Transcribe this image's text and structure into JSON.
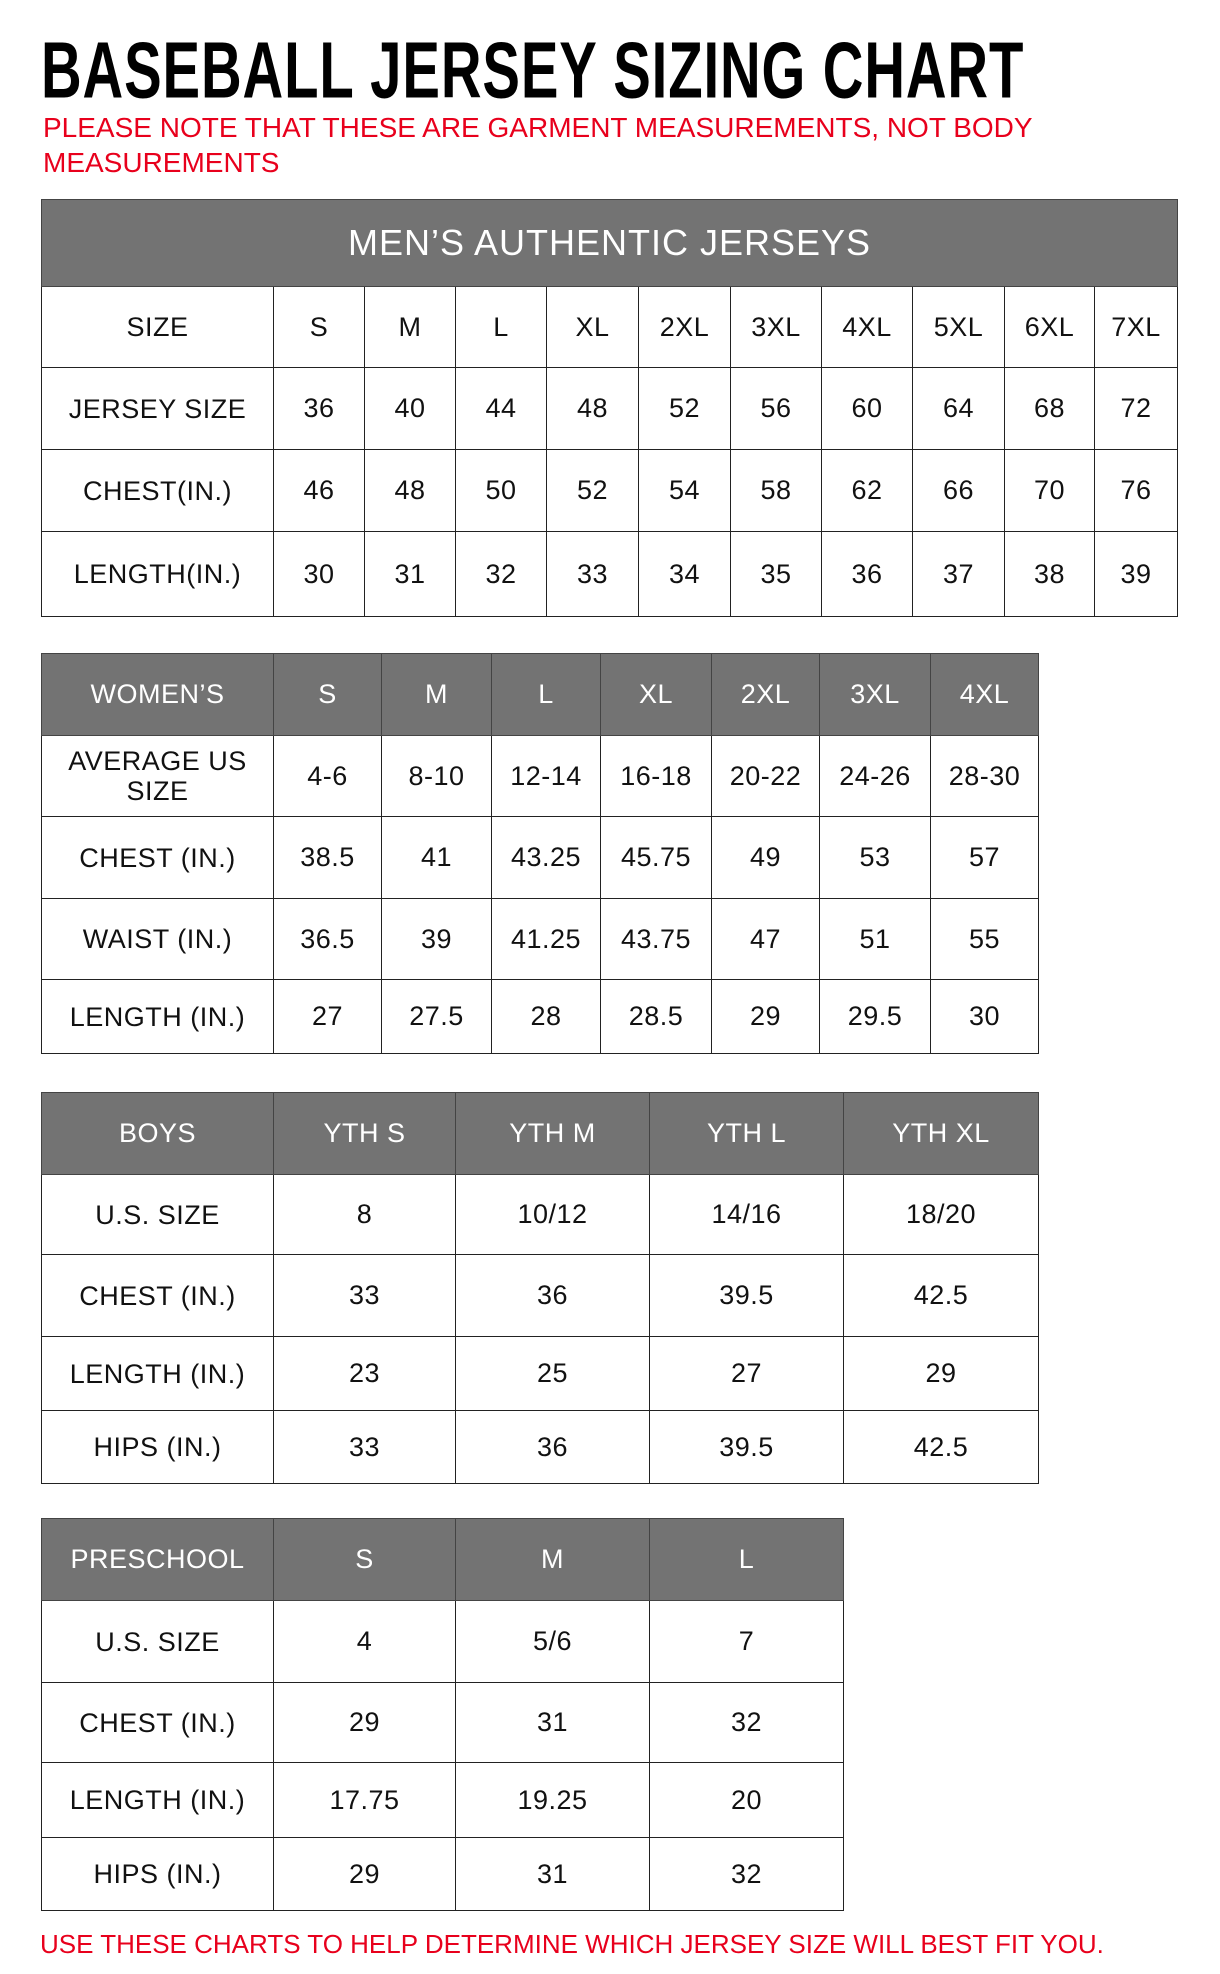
{
  "title": "BASEBALL JERSEY SIZING CHART",
  "note": "PLEASE NOTE THAT THESE ARE GARMENT MEASUREMENTS, NOT BODY MEASUREMENTS",
  "footer": "USE THESE CHARTS TO HELP DETERMINE WHICH JERSEY SIZE WILL BEST FIT YOU.",
  "colors": {
    "header_bg": "#737373",
    "note_red": "#e8001c"
  },
  "tables": [
    {
      "title": "MEN’S AUTHENTIC JERSEYS",
      "header_gray": false,
      "header": [
        "SIZE",
        "S",
        "M",
        "L",
        "XL",
        "2XL",
        "3XL",
        "4XL",
        "5XL",
        "6XL",
        "7XL"
      ],
      "rows": [
        [
          "JERSEY SIZE",
          "36",
          "40",
          "44",
          "48",
          "52",
          "56",
          "60",
          "64",
          "68",
          "72"
        ],
        [
          "CHEST(IN.)",
          "46",
          "48",
          "50",
          "52",
          "54",
          "58",
          "62",
          "66",
          "70",
          "76"
        ],
        [
          "LENGTH(IN.)",
          "30",
          "31",
          "32",
          "33",
          "34",
          "35",
          "36",
          "37",
          "38",
          "39"
        ]
      ]
    },
    {
      "header_gray": true,
      "header": [
        "WOMEN’S",
        "S",
        "M",
        "L",
        "XL",
        "2XL",
        "3XL",
        "4XL"
      ],
      "rows": [
        [
          "AVERAGE US SIZE",
          "4-6",
          "8-10",
          "12-14",
          "16-18",
          "20-22",
          "24-26",
          "28-30"
        ],
        [
          "CHEST (IN.)",
          "38.5",
          "41",
          "43.25",
          "45.75",
          "49",
          "53",
          "57"
        ],
        [
          "WAIST (IN.)",
          "36.5",
          "39",
          "41.25",
          "43.75",
          "47",
          "51",
          "55"
        ],
        [
          "LENGTH (IN.)",
          "27",
          "27.5",
          "28",
          "28.5",
          "29",
          "29.5",
          "30"
        ]
      ]
    },
    {
      "header_gray": true,
      "header": [
        "BOYS",
        "YTH S",
        "YTH M",
        "YTH L",
        "YTH XL"
      ],
      "rows": [
        [
          "U.S. SIZE",
          "8",
          "10/12",
          "14/16",
          "18/20"
        ],
        [
          "CHEST (IN.)",
          "33",
          "36",
          "39.5",
          "42.5"
        ],
        [
          "LENGTH (IN.)",
          "23",
          "25",
          "27",
          "29"
        ],
        [
          "HIPS (IN.)",
          "33",
          "36",
          "39.5",
          "42.5"
        ]
      ]
    },
    {
      "header_gray": true,
      "header": [
        "PRESCHOOL",
        "S",
        "M",
        "L"
      ],
      "rows": [
        [
          "U.S. SIZE",
          "4",
          "5/6",
          "7"
        ],
        [
          "CHEST (IN.)",
          "29",
          "31",
          "32"
        ],
        [
          "LENGTH (IN.)",
          "17.75",
          "19.25",
          "20"
        ],
        [
          "HIPS (IN.)",
          "29",
          "31",
          "32"
        ]
      ]
    }
  ]
}
